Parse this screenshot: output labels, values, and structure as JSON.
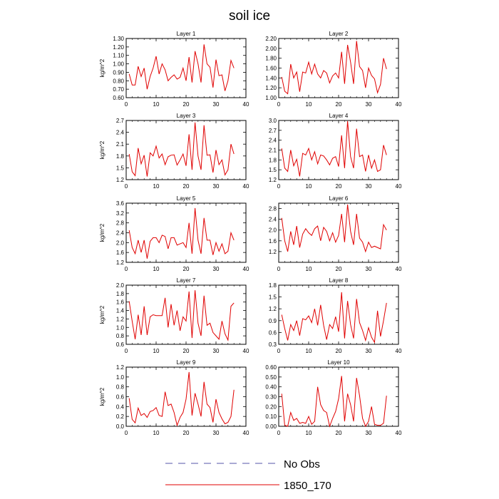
{
  "figure": {
    "title": "soil ice"
  },
  "legend": {
    "placement": "bottom-center",
    "items": [
      {
        "label": "No Obs",
        "color": "#5555aa",
        "dash": true
      },
      {
        "label": "1850_170",
        "color": "#e00000",
        "dash": false
      }
    ]
  },
  "colors": {
    "series": "#e00000",
    "axis": "#000000"
  },
  "chart_data": [
    {
      "type": "line",
      "title": "Layer 1",
      "ylabel": "kg/m^2",
      "xlim": [
        0,
        40
      ],
      "xticks": [
        0,
        10,
        20,
        30,
        40
      ],
      "ylim": [
        0.6,
        1.3
      ],
      "yticks": [
        0.6,
        0.7,
        0.8,
        0.9,
        1.0,
        1.1,
        1.2,
        1.3
      ],
      "ytick_labels": [
        "0.60",
        "0.70",
        "0.80",
        "0.90",
        "1.00",
        "1.10",
        "1.20",
        "1.30"
      ],
      "series": [
        {
          "name": "1850_170",
          "x": [
            1,
            2,
            3,
            4,
            5,
            6,
            7,
            8,
            9,
            10,
            11,
            12,
            13,
            14,
            15,
            16,
            17,
            18,
            19,
            20,
            21,
            22,
            23,
            24,
            25,
            26,
            27,
            28,
            29,
            30,
            31,
            32,
            33,
            34,
            35,
            36
          ],
          "values": [
            0.88,
            0.75,
            0.75,
            0.97,
            0.85,
            0.95,
            0.7,
            0.85,
            0.95,
            1.09,
            0.88,
            1.0,
            0.93,
            0.8,
            0.84,
            0.87,
            0.82,
            0.84,
            0.95,
            0.8,
            1.08,
            0.78,
            1.15,
            1.0,
            0.78,
            1.23,
            1.0,
            0.96,
            0.72,
            1.05,
            0.86,
            0.87,
            0.68,
            0.8,
            1.04,
            0.95
          ]
        }
      ]
    },
    {
      "type": "line",
      "title": "Layer 2",
      "ylabel": "",
      "xlim": [
        0,
        40
      ],
      "xticks": [
        0,
        10,
        20,
        30,
        40
      ],
      "ylim": [
        1.0,
        2.2
      ],
      "yticks": [
        1.0,
        1.2,
        1.4,
        1.6,
        1.8,
        2.0,
        2.2
      ],
      "ytick_labels": [
        "1.00",
        "1.20",
        "1.40",
        "1.60",
        "1.80",
        "2.00",
        "2.20"
      ],
      "series": [
        {
          "name": "1850_170",
          "x": [
            1,
            2,
            3,
            4,
            5,
            6,
            7,
            8,
            9,
            10,
            11,
            12,
            13,
            14,
            15,
            16,
            17,
            18,
            19,
            20,
            21,
            22,
            23,
            24,
            25,
            26,
            27,
            28,
            29,
            30,
            31,
            32,
            33,
            34,
            35,
            36
          ],
          "values": [
            1.42,
            1.13,
            1.08,
            1.68,
            1.4,
            1.52,
            1.12,
            1.52,
            1.5,
            1.72,
            1.48,
            1.68,
            1.48,
            1.4,
            1.55,
            1.5,
            1.3,
            1.44,
            1.5,
            1.4,
            1.93,
            1.28,
            2.07,
            1.72,
            1.28,
            2.15,
            1.63,
            1.55,
            1.2,
            1.6,
            1.45,
            1.38,
            1.1,
            1.27,
            1.8,
            1.58
          ]
        }
      ]
    },
    {
      "type": "line",
      "title": "Layer 3",
      "ylabel": "kg/m^2",
      "xlim": [
        0,
        40
      ],
      "xticks": [
        0,
        10,
        20,
        30,
        40
      ],
      "ylim": [
        1.2,
        2.7
      ],
      "yticks": [
        1.2,
        1.5,
        1.8,
        2.1,
        2.4,
        2.7
      ],
      "ytick_labels": [
        "1.2",
        "1.5",
        "1.8",
        "2.1",
        "2.4",
        "2.7"
      ],
      "series": [
        {
          "name": "1850_170",
          "x": [
            1,
            2,
            3,
            4,
            5,
            6,
            7,
            8,
            9,
            10,
            11,
            12,
            13,
            14,
            15,
            16,
            17,
            18,
            19,
            20,
            21,
            22,
            23,
            24,
            25,
            26,
            27,
            28,
            29,
            30,
            31,
            32,
            33,
            34,
            35,
            36
          ],
          "values": [
            1.85,
            1.4,
            1.3,
            2.0,
            1.6,
            1.82,
            1.28,
            1.88,
            1.8,
            2.05,
            1.75,
            1.85,
            1.58,
            1.78,
            1.82,
            1.83,
            1.57,
            1.7,
            1.85,
            1.55,
            2.35,
            1.45,
            2.65,
            1.8,
            1.45,
            2.58,
            1.82,
            1.83,
            1.38,
            1.95,
            1.58,
            1.7,
            1.32,
            1.45,
            2.1,
            1.85
          ]
        }
      ]
    },
    {
      "type": "line",
      "title": "Layer 4",
      "ylabel": "",
      "xlim": [
        0,
        40
      ],
      "xticks": [
        0,
        10,
        20,
        30,
        40
      ],
      "ylim": [
        1.2,
        3.0
      ],
      "yticks": [
        1.2,
        1.5,
        1.8,
        2.1,
        2.4,
        2.7,
        3.0
      ],
      "ytick_labels": [
        "1.2",
        "1.5",
        "1.8",
        "2.1",
        "2.4",
        "2.7",
        "3.0"
      ],
      "series": [
        {
          "name": "1850_170",
          "x": [
            1,
            2,
            3,
            4,
            5,
            6,
            7,
            8,
            9,
            10,
            11,
            12,
            13,
            14,
            15,
            16,
            17,
            18,
            19,
            20,
            21,
            22,
            23,
            24,
            25,
            26,
            27,
            28,
            29,
            30,
            31,
            32,
            33,
            34,
            35,
            36
          ],
          "values": [
            2.15,
            1.55,
            1.45,
            2.1,
            1.62,
            1.82,
            1.3,
            2.0,
            1.95,
            2.15,
            1.8,
            2.05,
            1.68,
            1.95,
            1.92,
            1.8,
            1.65,
            1.85,
            1.9,
            1.6,
            2.55,
            1.55,
            2.98,
            1.9,
            1.55,
            2.75,
            1.9,
            1.95,
            1.45,
            1.95,
            1.55,
            1.8,
            1.45,
            1.5,
            2.25,
            1.95
          ]
        }
      ]
    },
    {
      "type": "line",
      "title": "Layer 5",
      "ylabel": "kg/m^2",
      "xlim": [
        0,
        40
      ],
      "xticks": [
        0,
        10,
        20,
        30,
        40
      ],
      "ylim": [
        1.2,
        3.6
      ],
      "yticks": [
        1.2,
        1.6,
        2.0,
        2.4,
        2.8,
        3.2,
        3.6
      ],
      "ytick_labels": [
        "1.2",
        "1.6",
        "2.0",
        "2.4",
        "2.8",
        "3.2",
        "3.6"
      ],
      "series": [
        {
          "name": "1850_170",
          "x": [
            1,
            2,
            3,
            4,
            5,
            6,
            7,
            8,
            9,
            10,
            11,
            12,
            13,
            14,
            15,
            16,
            17,
            18,
            19,
            20,
            21,
            22,
            23,
            24,
            25,
            26,
            27,
            28,
            29,
            30,
            31,
            32,
            33,
            34,
            35,
            36
          ],
          "values": [
            2.5,
            1.8,
            1.55,
            2.1,
            1.6,
            2.1,
            1.35,
            2.05,
            2.2,
            2.2,
            2.0,
            2.3,
            2.25,
            1.75,
            2.2,
            2.2,
            1.9,
            1.95,
            2.0,
            1.8,
            2.8,
            1.55,
            3.4,
            2.1,
            1.55,
            3.0,
            2.1,
            2.1,
            1.5,
            2.0,
            1.65,
            1.95,
            1.55,
            1.65,
            2.4,
            2.1
          ]
        }
      ]
    },
    {
      "type": "line",
      "title": "Layer 6",
      "ylabel": "",
      "xlim": [
        0,
        40
      ],
      "xticks": [
        0,
        10,
        20,
        30,
        40
      ],
      "ylim": [
        0.8,
        3.0
      ],
      "yticks": [
        1.2,
        1.6,
        2.0,
        2.4,
        2.8
      ],
      "ytick_labels": [
        "1.2",
        "1.6",
        "2.0",
        "2.4",
        "2.8"
      ],
      "series": [
        {
          "name": "1850_170",
          "x": [
            1,
            2,
            3,
            4,
            5,
            6,
            7,
            8,
            9,
            10,
            11,
            12,
            13,
            14,
            15,
            16,
            17,
            18,
            19,
            20,
            21,
            22,
            23,
            24,
            25,
            26,
            27,
            28,
            29,
            30,
            31,
            32,
            33,
            34,
            35,
            36
          ],
          "values": [
            2.45,
            1.6,
            1.2,
            1.95,
            1.45,
            2.15,
            1.35,
            1.85,
            2.05,
            1.9,
            1.8,
            2.05,
            2.15,
            1.6,
            2.1,
            1.95,
            1.6,
            1.9,
            1.55,
            1.8,
            2.6,
            1.55,
            2.95,
            1.95,
            1.45,
            2.6,
            1.7,
            1.55,
            1.2,
            1.55,
            1.35,
            1.4,
            1.35,
            1.3,
            2.2,
            2.0
          ]
        }
      ]
    },
    {
      "type": "line",
      "title": "Layer 7",
      "ylabel": "kg/m^2",
      "xlim": [
        0,
        40
      ],
      "xticks": [
        0,
        10,
        20,
        30,
        40
      ],
      "ylim": [
        0.6,
        2.0
      ],
      "yticks": [
        0.6,
        0.8,
        1.0,
        1.2,
        1.4,
        1.6,
        1.8,
        2.0
      ],
      "ytick_labels": [
        "0.6",
        "0.8",
        "1.0",
        "1.2",
        "1.4",
        "1.6",
        "1.8",
        "2.0"
      ],
      "series": [
        {
          "name": "1850_170",
          "x": [
            1,
            2,
            3,
            4,
            5,
            6,
            7,
            8,
            9,
            10,
            11,
            12,
            13,
            14,
            15,
            16,
            17,
            18,
            19,
            20,
            21,
            22,
            23,
            24,
            25,
            26,
            27,
            28,
            29,
            30,
            31,
            32,
            33,
            34,
            35,
            36
          ],
          "values": [
            1.62,
            1.15,
            0.72,
            1.3,
            0.82,
            1.5,
            0.82,
            1.25,
            1.3,
            1.28,
            1.28,
            1.28,
            1.7,
            1.0,
            1.55,
            1.05,
            1.4,
            0.92,
            1.25,
            1.15,
            1.85,
            0.75,
            1.88,
            1.1,
            0.8,
            1.75,
            1.05,
            1.1,
            0.88,
            0.8,
            0.72,
            1.15,
            0.85,
            0.7,
            1.5,
            1.58
          ]
        }
      ]
    },
    {
      "type": "line",
      "title": "Layer 8",
      "ylabel": "",
      "xlim": [
        0,
        40
      ],
      "xticks": [
        0,
        10,
        20,
        30,
        40
      ],
      "ylim": [
        0.3,
        1.8
      ],
      "yticks": [
        0.3,
        0.6,
        0.9,
        1.2,
        1.5,
        1.8
      ],
      "ytick_labels": [
        "0.3",
        "0.6",
        "0.9",
        "1.2",
        "1.5",
        "1.8"
      ],
      "series": [
        {
          "name": "1850_170",
          "x": [
            1,
            2,
            3,
            4,
            5,
            6,
            7,
            8,
            9,
            10,
            11,
            12,
            13,
            14,
            15,
            16,
            17,
            18,
            19,
            20,
            21,
            22,
            23,
            24,
            25,
            26,
            27,
            28,
            29,
            30,
            31,
            32,
            33,
            34,
            35,
            36
          ],
          "values": [
            1.05,
            0.7,
            0.4,
            0.8,
            0.65,
            0.9,
            0.52,
            0.95,
            0.92,
            1.02,
            0.85,
            1.2,
            0.78,
            1.3,
            0.78,
            0.42,
            0.8,
            0.7,
            1.0,
            0.62,
            1.62,
            0.45,
            1.4,
            0.8,
            0.45,
            1.45,
            0.85,
            0.65,
            0.4,
            0.72,
            0.48,
            0.35,
            1.15,
            0.5,
            0.9,
            1.35
          ]
        }
      ]
    },
    {
      "type": "line",
      "title": "Layer 9",
      "ylabel": "kg/m^2",
      "xlim": [
        0,
        40
      ],
      "xticks": [
        0,
        10,
        20,
        30,
        40
      ],
      "ylim": [
        0.0,
        1.2
      ],
      "yticks": [
        0.0,
        0.2,
        0.4,
        0.6,
        0.8,
        1.0,
        1.2
      ],
      "ytick_labels": [
        "0.0",
        "0.2",
        "0.4",
        "0.6",
        "0.8",
        "1.0",
        "1.2"
      ],
      "series": [
        {
          "name": "1850_170",
          "x": [
            1,
            2,
            3,
            4,
            5,
            6,
            7,
            8,
            9,
            10,
            11,
            12,
            13,
            14,
            15,
            16,
            17,
            18,
            19,
            20,
            21,
            22,
            23,
            24,
            25,
            26,
            27,
            28,
            29,
            30,
            31,
            32,
            33,
            34,
            35,
            36
          ],
          "values": [
            0.57,
            0.14,
            0.07,
            0.37,
            0.22,
            0.26,
            0.18,
            0.3,
            0.32,
            0.38,
            0.22,
            0.2,
            0.7,
            0.42,
            0.45,
            0.28,
            0.02,
            0.18,
            0.28,
            0.55,
            1.1,
            0.22,
            0.67,
            0.45,
            0.2,
            0.9,
            0.45,
            0.38,
            0.08,
            0.55,
            0.28,
            0.15,
            0.05,
            0.08,
            0.2,
            0.74
          ]
        }
      ]
    },
    {
      "type": "line",
      "title": "Layer 10",
      "ylabel": "",
      "xlim": [
        0,
        40
      ],
      "xticks": [
        0,
        10,
        20,
        30,
        40
      ],
      "ylim": [
        0.0,
        0.6
      ],
      "yticks": [
        0.0,
        0.1,
        0.2,
        0.3,
        0.4,
        0.5,
        0.6
      ],
      "ytick_labels": [
        "0.00",
        "0.10",
        "0.20",
        "0.30",
        "0.40",
        "0.50",
        "0.60"
      ],
      "series": [
        {
          "name": "1850_170",
          "x": [
            1,
            2,
            3,
            4,
            5,
            6,
            7,
            8,
            9,
            10,
            11,
            12,
            13,
            14,
            15,
            16,
            17,
            18,
            19,
            20,
            21,
            22,
            23,
            24,
            25,
            26,
            27,
            28,
            29,
            30,
            31,
            32,
            33,
            34,
            35,
            36
          ],
          "values": [
            0.33,
            0.01,
            0.0,
            0.14,
            0.06,
            0.08,
            0.03,
            0.04,
            0.03,
            0.1,
            0.02,
            0.05,
            0.4,
            0.22,
            0.16,
            0.14,
            0.0,
            0.08,
            0.15,
            0.28,
            0.51,
            0.05,
            0.33,
            0.22,
            0.05,
            0.49,
            0.31,
            0.08,
            0.0,
            0.05,
            0.2,
            0.02,
            0.01,
            0.01,
            0.03,
            0.31
          ]
        }
      ]
    }
  ]
}
